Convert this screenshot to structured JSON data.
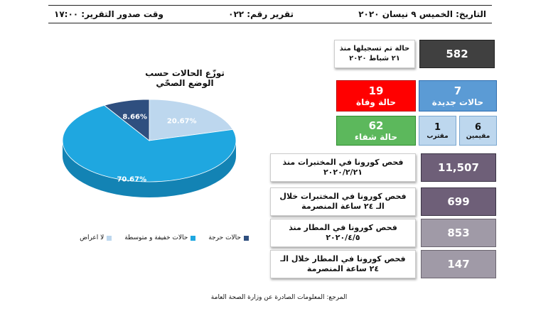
{
  "header": {
    "date": "التاريخ: الخميس ٩ نيسان ٢٠٢٠",
    "report_number": "تقرير رقم: ٠٢٢",
    "report_time": "وقت صدور التقرير: ١٧:٠٠"
  },
  "stats": {
    "total_cases": "582",
    "total_label": "حالة تم تسجيلها منذ ٢١ شباط ٢٠٢٠",
    "deaths_value": "19",
    "deaths_label": "حالة وفاة",
    "new_value": "7",
    "new_label": "حالات جديدة",
    "recovered_value": "62",
    "recovered_label": "حالة شفاء",
    "contacts_value": "1",
    "contacts_label": "مقترب",
    "residents_value": "6",
    "residents_label": "مقيمين",
    "lab_tests_label": "فحص كورونا في المختبرات منذ ٢٠٢٠/٢/٢١",
    "lab_tests_value": "11,507",
    "lab_24h_label": "فحص كورونا في المختبرات خلال الـ ٢٤ ساعة المنصرمة",
    "lab_24h_value": "699",
    "airport_label": "فحص كورونا في المطار منذ ٢٠٢٠/٤/٥",
    "airport_value": "853",
    "airport_24h_label": "فحص كورونا في المطار خلال الـ ٢٤ ساعة المنصرمة",
    "airport_24h_value": "147"
  },
  "chart_data": {
    "type": "pie",
    "title": "توزّع الحالات حسب الوضع الصحّي",
    "categories": [
      "لا اعراض",
      "حالات خفيفة و متوسطة",
      "حالات حرجة"
    ],
    "values": [
      20.67,
      70.67,
      8.66
    ],
    "value_labels": [
      "20.67%",
      "70.67%",
      "8.66%"
    ],
    "colors": [
      "#bdd7ee",
      "#1fa7e0",
      "#2f4f7f"
    ],
    "legend_position": "bottom"
  },
  "footer": {
    "source": "المرجع: المعلومات الصادرة عن وزارة الصحة العامة"
  }
}
